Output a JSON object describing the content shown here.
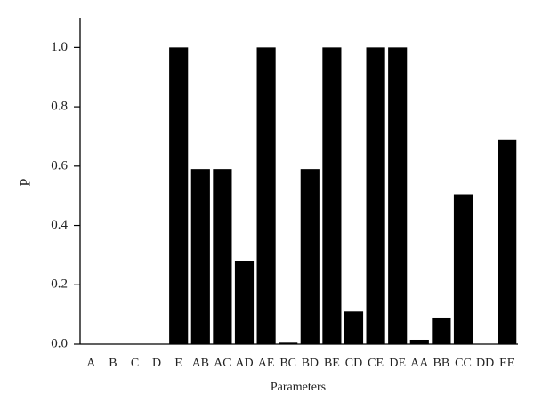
{
  "chart_data": {
    "type": "bar",
    "x_label": "Parameters",
    "y_label": "P",
    "categories": [
      "A",
      "B",
      "C",
      "D",
      "E",
      "AB",
      "AC",
      "AD",
      "AE",
      "BC",
      "BD",
      "BE",
      "CD",
      "CE",
      "DE",
      "AA",
      "BB",
      "CC",
      "DD",
      "EE"
    ],
    "values": [
      0,
      0,
      0,
      0,
      1.0,
      0.59,
      0.59,
      0.28,
      1.0,
      0.005,
      0.59,
      1.0,
      0.11,
      1.0,
      1.0,
      0.015,
      0.09,
      0.505,
      0,
      0.69
    ],
    "color": "#000000",
    "ylim": [
      0,
      1.1
    ],
    "yticks": [
      {
        "value": 0,
        "label": "0.0"
      },
      0.2,
      0.4,
      0.6,
      0.8,
      {
        "value": 1,
        "label": "1.0"
      }
    ],
    "grid": false
  }
}
